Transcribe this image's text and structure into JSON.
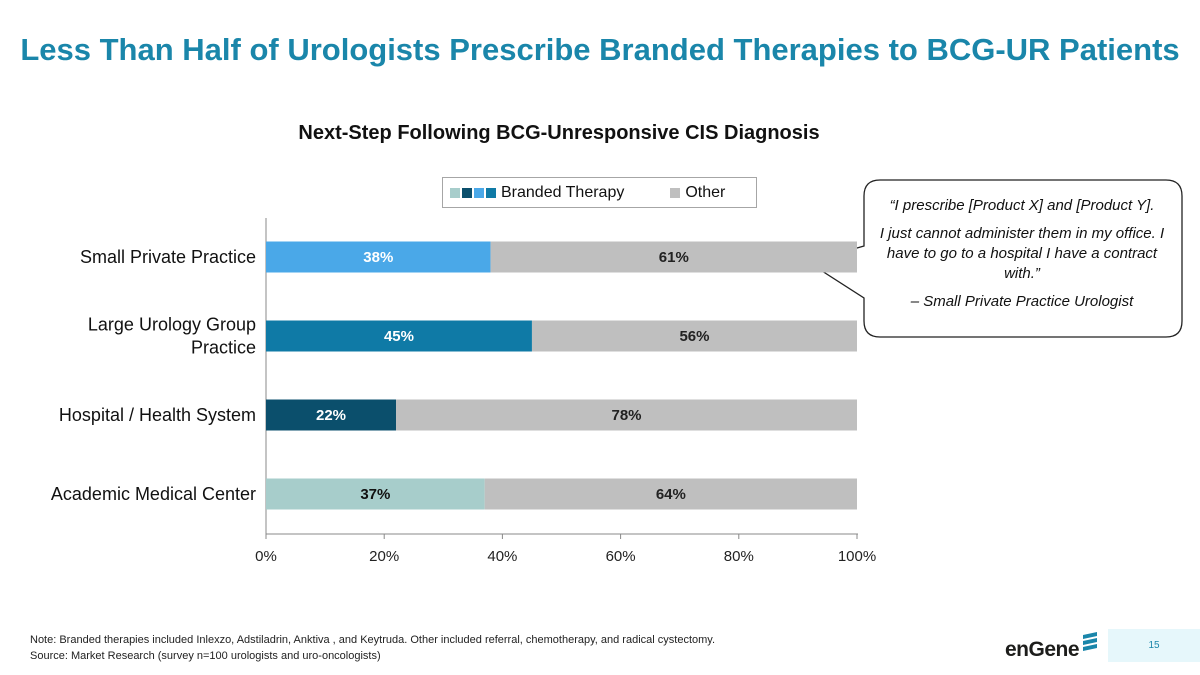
{
  "title": "Less Than Half of Urologists Prescribe Branded Therapies to BCG-UR Patients",
  "chart_data": {
    "type": "bar",
    "orientation": "horizontal",
    "stacked": true,
    "title": "Next-Step Following BCG-Unresponsive CIS Diagnosis",
    "categories": [
      [
        "Small Private Practice"
      ],
      [
        "Large Urology Group",
        "Practice"
      ],
      [
        "Hospital / Health System"
      ],
      [
        "Academic Medical Center"
      ]
    ],
    "series": [
      {
        "name": "Branded Therapy",
        "values": [
          38,
          45,
          22,
          37
        ],
        "labels": [
          "38%",
          "45%",
          "22%",
          "37%"
        ],
        "colors": [
          "#4aa8e8",
          "#0f7aa6",
          "#0b4f6c",
          "#a7cdcb"
        ],
        "label_colors": [
          "#ffffff",
          "#ffffff",
          "#ffffff",
          "#111111"
        ]
      },
      {
        "name": "Other",
        "values": [
          61,
          56,
          78,
          64
        ],
        "labels": [
          "61%",
          "56%",
          "78%",
          "64%"
        ],
        "colors": [
          "#bfbfbf",
          "#bfbfbf",
          "#bfbfbf",
          "#bfbfbf"
        ],
        "label_colors": [
          "#222222",
          "#222222",
          "#222222",
          "#222222"
        ]
      }
    ],
    "xlim": [
      0,
      100
    ],
    "xticks": [
      0,
      20,
      40,
      60,
      80,
      100
    ],
    "xtick_labels": [
      "0%",
      "20%",
      "40%",
      "60%",
      "80%",
      "100%"
    ],
    "legend_position": "top",
    "grid": false
  },
  "legend": {
    "branded_label": "Branded Therapy",
    "branded_swatches": [
      "#a7cdcb",
      "#0b4f6c",
      "#4aa8e8",
      "#0f7aa6"
    ],
    "other_label": "Other"
  },
  "callout": {
    "quote_line1": "“I prescribe [Product X] and [Product Y].",
    "quote_line2": "I just cannot administer them in my office. I have to go to a hospital I have a contract with.”",
    "attribution": "– Small Private Practice Urologist"
  },
  "footer": {
    "note": "Note: Branded therapies included Inlexzo, Adstiladrin, Anktiva , and Keytruda. Other included referral, chemotherapy, and radical cystectomy.",
    "source": "Source: Market Research (survey n=100 urologists and uro-oncologists)",
    "logo_text": "enGene",
    "page_number": "15"
  },
  "colors": {
    "title": "#1a86aa",
    "logo_stripes": "#1a86aa"
  }
}
